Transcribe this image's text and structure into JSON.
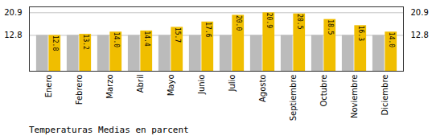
{
  "chart_data": {
    "type": "bar",
    "title": "Temperaturas Medias en parcent",
    "categories": [
      "Enero",
      "Febrero",
      "Marzo",
      "Abril",
      "Mayo",
      "Junio",
      "Julio",
      "Agosto",
      "Septiembre",
      "Octubre",
      "Noviembre",
      "Diciembre"
    ],
    "series": [
      {
        "color": "#BBBBBB",
        "values": [
          12.8,
          12.8,
          12.8,
          12.8,
          12.8,
          12.8,
          12.8,
          12.8,
          12.8,
          12.8,
          12.8,
          12.8
        ]
      },
      {
        "color": "#F0BE00",
        "values": [
          12.8,
          13.2,
          14.0,
          14.4,
          15.7,
          17.6,
          20.0,
          20.9,
          20.5,
          18.5,
          16.3,
          14.0
        ],
        "value_labels": [
          "12.8",
          "13.2",
          "14.0",
          "14.4",
          "15.7",
          "17.6",
          "20.0",
          "20.9",
          "20.5",
          "18.5",
          "16.3",
          "14.0"
        ],
        "data_labels": true
      }
    ],
    "ylim": [
      0,
      23.0
    ],
    "yticks": [
      12.8,
      20.9
    ],
    "grid": true
  }
}
